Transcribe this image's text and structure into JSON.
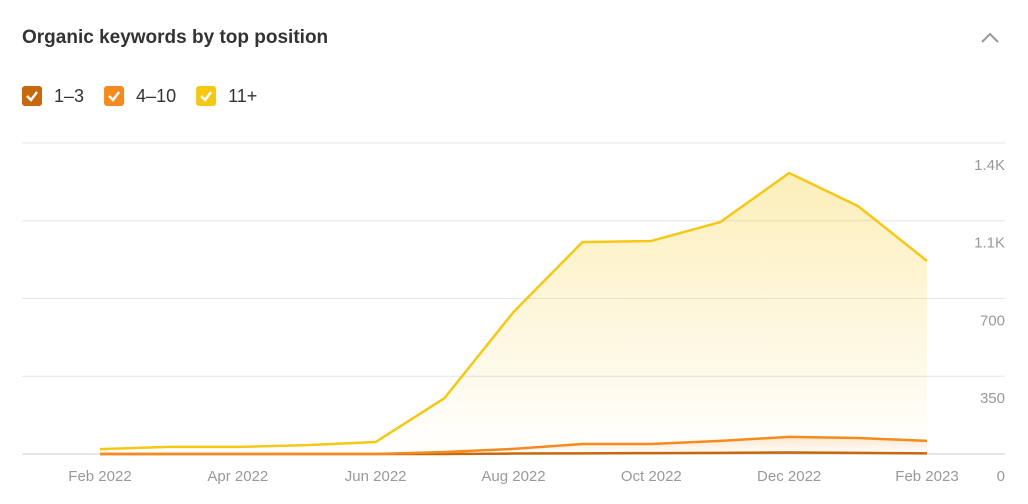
{
  "chart_data": {
    "type": "stacked-area",
    "title": "Organic keywords by top position",
    "categories": [
      "Feb 2022",
      null,
      "Apr 2022",
      null,
      "Jun 2022",
      null,
      "Aug 2022",
      null,
      "Oct 2022",
      null,
      "Dec 2022",
      null,
      "Feb 2023"
    ],
    "series": [
      {
        "name": "1–3",
        "color": "#c8680c",
        "values": [
          0,
          0,
          0,
          0,
          0,
          0,
          2,
          3,
          4,
          5,
          7,
          5,
          3
        ]
      },
      {
        "name": "4–10",
        "color": "#f58a1f",
        "values": [
          0,
          0,
          0,
          0,
          0,
          9,
          21,
          42,
          41,
          54,
          70,
          67,
          56
        ]
      },
      {
        "name": "11+",
        "color": "#f5c816",
        "values": [
          22,
          32,
          32,
          40,
          54,
          243,
          616,
          909,
          914,
          985,
          1188,
          1044,
          810
        ]
      }
    ],
    "ylim": [
      0,
      1400
    ],
    "yticks": [
      0,
      350,
      700,
      {
        "value": 1050,
        "label": "1.1K"
      },
      {
        "value": 1400,
        "label": "1.4K"
      }
    ],
    "grid": true
  }
}
